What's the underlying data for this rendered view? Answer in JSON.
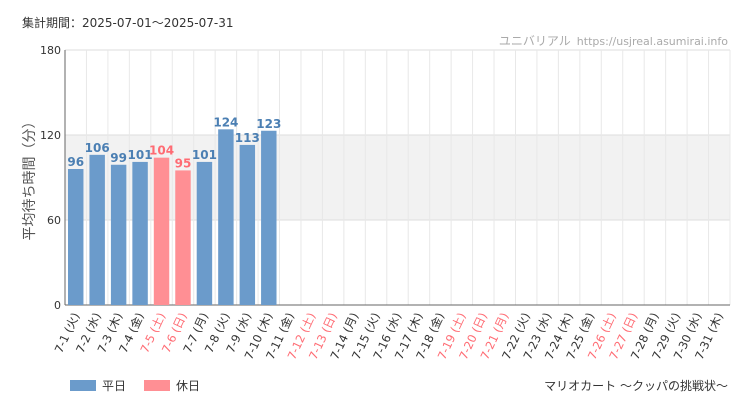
{
  "header": {
    "period": "集計期間：2025-07-01～2025-07-31",
    "site_name": "ユニバリアル",
    "site_url": "https://usjreal.asumirai.info"
  },
  "legend": {
    "weekday": "平日",
    "holiday": "休日"
  },
  "footer": {
    "attraction": "マリオカート 〜クッパの挑戦状〜"
  },
  "colors": {
    "weekday": "#6b9bcb",
    "holiday": "#ff8f94",
    "weekday_label": "#4b7fb3",
    "holiday_label": "#ff6b73"
  },
  "chart_data": {
    "type": "bar",
    "ylabel": "平均待ち時間（分）",
    "ylim": [
      0,
      180
    ],
    "yticks": [
      0,
      60,
      120,
      180
    ],
    "bands": [
      [
        60,
        120
      ]
    ],
    "categories": [
      "7-1 (火)",
      "7-2 (水)",
      "7-3 (木)",
      "7-4 (金)",
      "7-5 (土)",
      "7-6 (日)",
      "7-7 (月)",
      "7-8 (火)",
      "7-9 (水)",
      "7-10 (木)",
      "7-11 (金)",
      "7-12 (土)",
      "7-13 (日)",
      "7-14 (月)",
      "7-15 (火)",
      "7-16 (水)",
      "7-17 (木)",
      "7-18 (金)",
      "7-19 (土)",
      "7-20 (日)",
      "7-21 (月)",
      "7-22 (火)",
      "7-23 (水)",
      "7-24 (木)",
      "7-25 (金)",
      "7-26 (土)",
      "7-27 (日)",
      "7-28 (月)",
      "7-29 (火)",
      "7-30 (水)",
      "7-31 (木)"
    ],
    "holiday": [
      false,
      false,
      false,
      false,
      true,
      true,
      false,
      false,
      false,
      false,
      false,
      true,
      true,
      false,
      false,
      false,
      false,
      false,
      true,
      true,
      true,
      false,
      false,
      false,
      false,
      true,
      true,
      false,
      false,
      false,
      false
    ],
    "values": [
      96,
      106,
      99,
      101,
      104,
      95,
      101,
      124,
      113,
      123,
      null,
      null,
      null,
      null,
      null,
      null,
      null,
      null,
      null,
      null,
      null,
      null,
      null,
      null,
      null,
      null,
      null,
      null,
      null,
      null,
      null
    ]
  }
}
